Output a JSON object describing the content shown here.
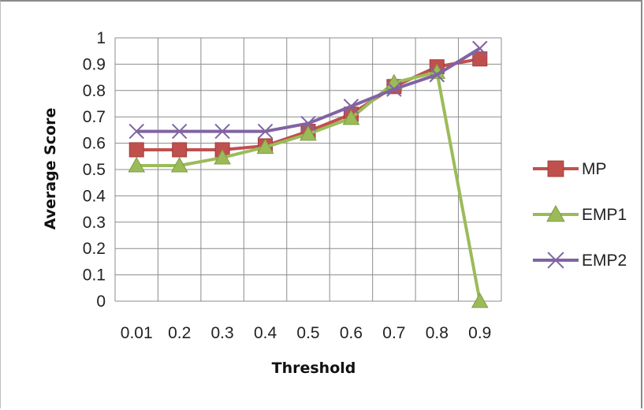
{
  "chart_data": {
    "type": "line",
    "title": "",
    "xlabel": "Threshold",
    "ylabel": "Average Score",
    "categories": [
      "0.01",
      "0.2",
      "0.3",
      "0.4",
      "0.5",
      "0.6",
      "0.7",
      "0.8",
      "0.9"
    ],
    "y_ticks": [
      "0",
      "0.1",
      "0.2",
      "0.3",
      "0.4",
      "0.5",
      "0.6",
      "0.7",
      "0.8",
      "0.9",
      "1"
    ],
    "ylim": [
      0,
      1
    ],
    "grid": true,
    "legend_position": "right",
    "series": [
      {
        "name": "MP",
        "color": "#c0504d",
        "marker": "square",
        "values": [
          0.575,
          0.575,
          0.575,
          0.59,
          0.645,
          0.71,
          0.815,
          0.89,
          0.92
        ]
      },
      {
        "name": "EMP1",
        "color": "#9bbb59",
        "marker": "triangle",
        "values": [
          0.515,
          0.515,
          0.545,
          0.585,
          0.635,
          0.695,
          0.83,
          0.87,
          0.0
        ]
      },
      {
        "name": "EMP2",
        "color": "#8064a2",
        "marker": "x",
        "values": [
          0.645,
          0.645,
          0.645,
          0.645,
          0.675,
          0.74,
          0.805,
          0.86,
          0.96
        ]
      }
    ]
  }
}
